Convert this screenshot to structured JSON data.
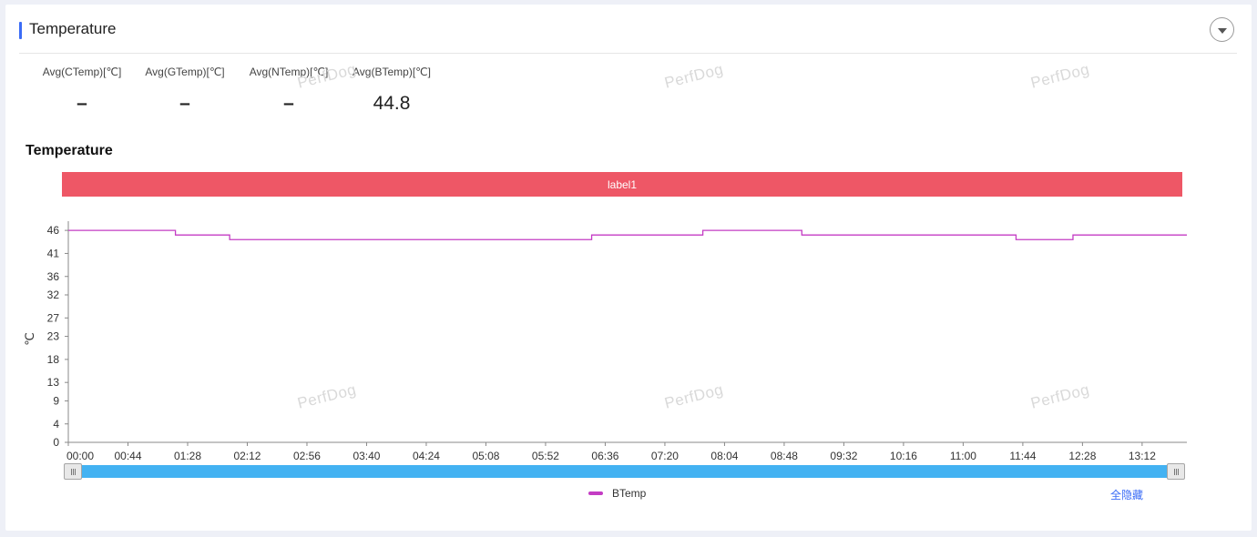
{
  "panel": {
    "title": "Temperature",
    "collapse_icon": "chevron-down-icon"
  },
  "stats": [
    {
      "label": "Avg(CTemp)[℃]",
      "value": "–"
    },
    {
      "label": "Avg(GTemp)[℃]",
      "value": "–"
    },
    {
      "label": "Avg(NTemp)[℃]",
      "value": "–"
    },
    {
      "label": "Avg(BTemp)[℃]",
      "value": "44.8"
    }
  ],
  "watermark_text": "PerfDog",
  "chart_data": {
    "type": "line",
    "title": "Temperature",
    "band_label": "label1",
    "ylabel": "℃",
    "yticks": [
      0,
      4,
      9,
      13,
      18,
      23,
      27,
      32,
      36,
      41,
      46
    ],
    "ylim": [
      0,
      48
    ],
    "xlim_seconds": [
      0,
      825
    ],
    "xtick_labels": [
      "00:00",
      "00:44",
      "01:28",
      "02:12",
      "02:56",
      "03:40",
      "04:24",
      "05:08",
      "05:52",
      "06:36",
      "07:20",
      "08:04",
      "08:48",
      "09:32",
      "10:16",
      "11:00",
      "11:44",
      "12:28",
      "13:12"
    ],
    "series": [
      {
        "name": "BTemp",
        "color": "#c43cc4",
        "step": true,
        "x": [
          "00:00",
          "01:19",
          "01:59",
          "06:26",
          "07:48",
          "09:01",
          "11:39",
          "12:21",
          "13:45"
        ],
        "y": [
          46,
          45,
          44,
          45,
          46,
          45,
          44,
          45,
          45
        ]
      }
    ],
    "grid": false,
    "legend_position": "bottom"
  },
  "slider": {
    "start": 0,
    "end": 1
  },
  "hide_all_label": "全隐藏",
  "colors": {
    "accent": "#3b6cf6",
    "band": "#ee5766",
    "slider": "#43b2f2",
    "series": "#c43cc4"
  }
}
